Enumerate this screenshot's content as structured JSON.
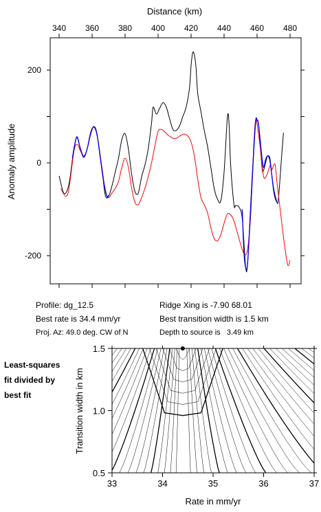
{
  "chart_data": [
    {
      "type": "line",
      "xlabel": "Distance (km)",
      "ylabel": "Anomaly amplitude",
      "xlim": [
        340,
        480
      ],
      "ylim": [
        -260,
        270
      ],
      "xticks": [
        340,
        360,
        380,
        400,
        420,
        440,
        460,
        480
      ],
      "yticks": [
        200,
        0,
        -200
      ],
      "grid": false,
      "series": [
        {
          "color": "#000000",
          "points": [
            [
              340,
              -28
            ],
            [
              343,
              -66
            ],
            [
              346,
              -45
            ],
            [
              349,
              32
            ],
            [
              351,
              56
            ],
            [
              353,
              28
            ],
            [
              355,
              12
            ],
            [
              357,
              30
            ],
            [
              359,
              60
            ],
            [
              361,
              78
            ],
            [
              363,
              62
            ],
            [
              366,
              -15
            ],
            [
              368,
              -70
            ],
            [
              370,
              -72
            ],
            [
              372,
              -50
            ],
            [
              374,
              -20
            ],
            [
              376,
              10
            ],
            [
              378,
              50
            ],
            [
              380,
              63
            ],
            [
              382,
              30
            ],
            [
              384,
              -25
            ],
            [
              386,
              -62
            ],
            [
              388,
              -65
            ],
            [
              390,
              -30
            ],
            [
              392,
              -5
            ],
            [
              394,
              30
            ],
            [
              396,
              85
            ],
            [
              397,
              120
            ],
            [
              399,
              105
            ],
            [
              401,
              118
            ],
            [
              403,
              130
            ],
            [
              405,
              120
            ],
            [
              407,
              95
            ],
            [
              409,
              72
            ],
            [
              411,
              70
            ],
            [
              413,
              80
            ],
            [
              415,
              100
            ],
            [
              417,
              120
            ],
            [
              419,
              160
            ],
            [
              420,
              210
            ],
            [
              421,
              238
            ],
            [
              422,
              232
            ],
            [
              423,
              205
            ],
            [
              424,
              150
            ],
            [
              426,
              110
            ],
            [
              428,
              70
            ],
            [
              430,
              35
            ],
            [
              432,
              -10
            ],
            [
              434,
              -55
            ],
            [
              436,
              -78
            ],
            [
              438,
              -82
            ],
            [
              440,
              -20
            ],
            [
              442,
              98
            ],
            [
              443,
              85
            ],
            [
              444,
              -5
            ],
            [
              446,
              -90
            ],
            [
              447,
              -92
            ],
            [
              449,
              -95
            ],
            [
              451,
              -120
            ],
            [
              453,
              -222
            ],
            [
              454,
              -228
            ],
            [
              455,
              -170
            ],
            [
              457,
              -30
            ],
            [
              459,
              80
            ],
            [
              460,
              92
            ],
            [
              461,
              80
            ],
            [
              463,
              -10
            ],
            [
              464,
              -15
            ],
            [
              466,
              12
            ],
            [
              467,
              15
            ],
            [
              468,
              5
            ],
            [
              470,
              -60
            ],
            [
              472,
              -85
            ],
            [
              473,
              -75
            ],
            [
              475,
              20
            ],
            [
              476,
              65
            ]
          ]
        },
        {
          "color": "#ff0000",
          "points": [
            [
              341,
              -55
            ],
            [
              344,
              -72
            ],
            [
              346,
              -55
            ],
            [
              349,
              25
            ],
            [
              351,
              40
            ],
            [
              353,
              25
            ],
            [
              355,
              15
            ],
            [
              357,
              30
            ],
            [
              359,
              65
            ],
            [
              361,
              77
            ],
            [
              363,
              60
            ],
            [
              366,
              -10
            ],
            [
              368,
              -60
            ],
            [
              370,
              -75
            ],
            [
              372,
              -65
            ],
            [
              374,
              -55
            ],
            [
              376,
              -40
            ],
            [
              378,
              -10
            ],
            [
              380,
              10
            ],
            [
              382,
              -10
            ],
            [
              384,
              -55
            ],
            [
              386,
              -85
            ],
            [
              388,
              -90
            ],
            [
              390,
              -75
            ],
            [
              392,
              -55
            ],
            [
              394,
              -30
            ],
            [
              396,
              0
            ],
            [
              398,
              35
            ],
            [
              400,
              68
            ],
            [
              402,
              72
            ],
            [
              404,
              67
            ],
            [
              406,
              60
            ],
            [
              408,
              55
            ],
            [
              410,
              52
            ],
            [
              412,
              55
            ],
            [
              414,
              60
            ],
            [
              416,
              62
            ],
            [
              418,
              58
            ],
            [
              420,
              45
            ],
            [
              422,
              15
            ],
            [
              424,
              -35
            ],
            [
              426,
              -75
            ],
            [
              428,
              -90
            ],
            [
              430,
              -108
            ],
            [
              432,
              -140
            ],
            [
              434,
              -163
            ],
            [
              436,
              -168
            ],
            [
              438,
              -155
            ],
            [
              440,
              -130
            ],
            [
              442,
              -110
            ],
            [
              444,
              -112
            ],
            [
              446,
              -125
            ],
            [
              448,
              -150
            ],
            [
              450,
              -175
            ],
            [
              452,
              -195
            ],
            [
              454,
              -190
            ],
            [
              456,
              -120
            ],
            [
              458,
              40
            ],
            [
              459,
              90
            ],
            [
              460,
              85
            ],
            [
              462,
              30
            ],
            [
              464,
              -30
            ],
            [
              466,
              -25
            ],
            [
              468,
              -5
            ],
            [
              469,
              -15
            ],
            [
              470,
              -5
            ],
            [
              471,
              -5
            ],
            [
              472,
              -40
            ],
            [
              474,
              -100
            ],
            [
              476,
              -160
            ],
            [
              478,
              -210
            ],
            [
              479,
              -222
            ],
            [
              480,
              -210
            ]
          ]
        },
        {
          "color": "#0000ff",
          "points": [
            [
              348,
              10
            ],
            [
              350,
              48
            ],
            [
              351,
              55
            ],
            [
              353,
              30
            ],
            [
              355,
              13
            ],
            [
              357,
              30
            ],
            [
              359,
              62
            ],
            [
              361,
              78
            ],
            [
              363,
              60
            ],
            [
              365,
              10
            ],
            [
              367,
              -40
            ],
            [
              369,
              -72
            ],
            [
              370,
              -70
            ],
            [
              451,
              -100
            ],
            [
              452,
              -190
            ],
            [
              453,
              -225
            ],
            [
              454,
              -225
            ],
            [
              455,
              -175
            ],
            [
              457,
              -40
            ],
            [
              459,
              85
            ],
            [
              460,
              92
            ],
            [
              461,
              80
            ],
            [
              463,
              10
            ],
            [
              464,
              -10
            ],
            [
              465,
              5
            ],
            [
              466,
              14
            ],
            [
              467,
              14
            ],
            [
              468,
              0
            ],
            [
              470,
              -55
            ],
            [
              472,
              -85
            ]
          ]
        }
      ]
    },
    {
      "type": "contour",
      "xlabel": "Rate in mm/yr",
      "ylabel": "Transition width in km",
      "xlim": [
        33,
        37
      ],
      "ylim": [
        0.5,
        1.5
      ],
      "xticks": [
        33,
        34,
        35,
        36,
        37
      ],
      "yticks": [
        0.5,
        1.0,
        1.5
      ],
      "best_fit": {
        "rate": 34.4,
        "width": 1.5
      },
      "grid": false
    }
  ],
  "top_axis": {
    "xlabel": "Distance (km)"
  },
  "info": {
    "profile": "Profile: dg_12.5",
    "best_rate": "Best rate is 34.4 mm/yr",
    "proj_az": "Proj. Az: 49.0 deg. CW of N",
    "ridge_xing": "Ridge Xing is -7.90 68.01",
    "best_width": "Best transition width is 1.5 km",
    "depth": "Depth to source is   3.49 km"
  },
  "side_note": {
    "line1": "Least-squares",
    "line2": "fit divided by",
    "line3": "best fit"
  }
}
